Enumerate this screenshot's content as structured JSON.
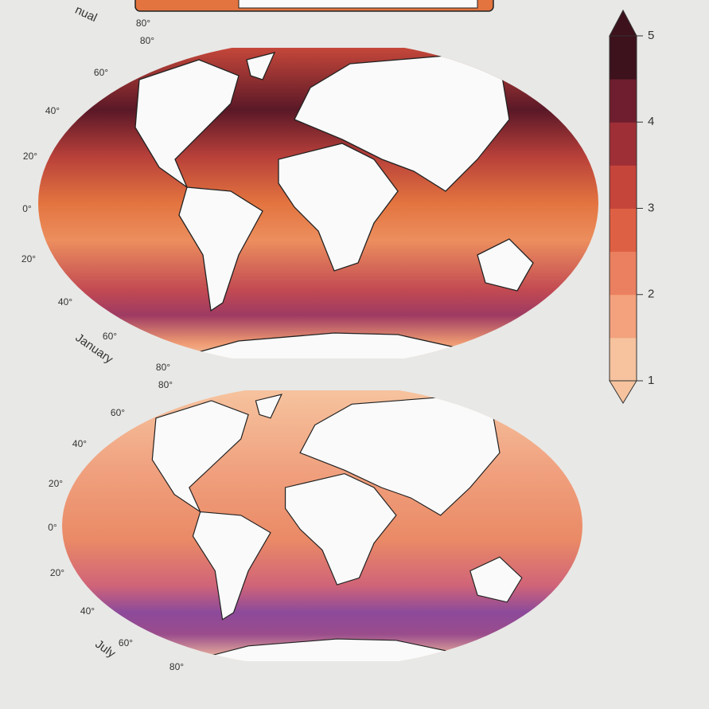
{
  "panels": [
    {
      "label": "nual",
      "lat_labels": [
        "80°"
      ]
    },
    {
      "label": "January",
      "lat_labels": [
        "80°",
        "60°",
        "40°",
        "20°",
        "0°",
        "20°",
        "40°",
        "60°",
        "80°"
      ]
    },
    {
      "label": "July",
      "lat_labels": [
        "80°",
        "60°",
        "40°",
        "20°",
        "0°",
        "20°",
        "40°",
        "60°",
        "80°"
      ]
    }
  ],
  "colorbar": {
    "lim": [
      1,
      5
    ],
    "ticks": [
      1,
      2,
      3,
      4,
      5
    ],
    "colors": [
      "#f6c39e",
      "#f3a27d",
      "#eb8060",
      "#de6044",
      "#c6453b",
      "#9f2f36",
      "#6e1e2e",
      "#3d121d"
    ]
  }
}
